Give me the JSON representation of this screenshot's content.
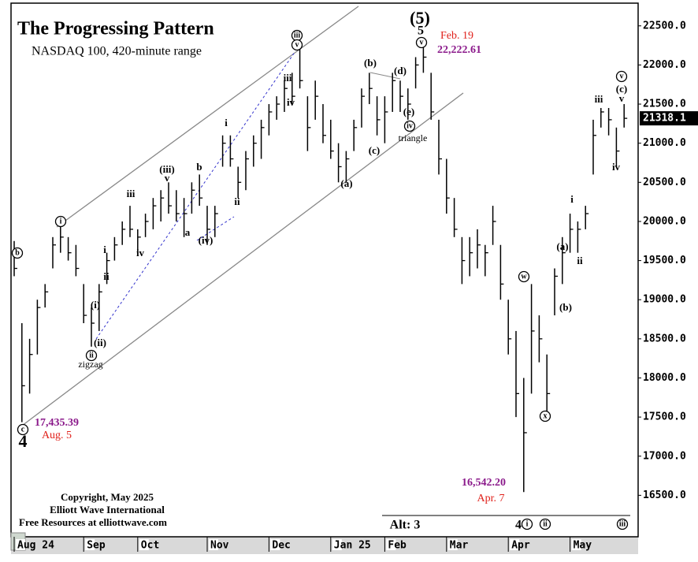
{
  "chart_data": {
    "type": "ohlc",
    "title": "The Progressing Pattern",
    "subtitle": "NASDAQ 100, 420-minute range",
    "categories": [
      "Aug 24",
      null,
      null,
      null,
      null,
      null,
      null,
      null,
      null,
      "Sep",
      null,
      null,
      null,
      null,
      null,
      null,
      "Oct",
      null,
      null,
      null,
      null,
      null,
      null,
      null,
      null,
      "Nov",
      null,
      null,
      null,
      null,
      null,
      null,
      null,
      "Dec",
      null,
      null,
      null,
      null,
      null,
      null,
      null,
      "Jan 25",
      null,
      null,
      null,
      null,
      null,
      null,
      "Feb",
      null,
      null,
      null,
      null,
      null,
      null,
      null,
      "Mar",
      null,
      null,
      null,
      null,
      null,
      null,
      null,
      "Apr",
      null,
      null,
      null,
      null,
      null,
      null,
      null,
      "May",
      null,
      null,
      null,
      null,
      null,
      null,
      null
    ],
    "high": [
      19750,
      18700,
      18500,
      19000,
      19200,
      19800,
      19950,
      19800,
      19700,
      19200,
      18900,
      19200,
      19600,
      19800,
      20000,
      20200,
      19900,
      20100,
      20300,
      20400,
      20500,
      20400,
      20300,
      20500,
      20600,
      20200,
      20200,
      21100,
      21100,
      20700,
      20900,
      21100,
      21300,
      21500,
      21600,
      21800,
      21900,
      22200,
      21600,
      21800,
      21500,
      21300,
      21000,
      20900,
      21300,
      21700,
      21900,
      21600,
      21600,
      21900,
      21800,
      21700,
      22100,
      22223,
      21900,
      21300,
      20800,
      20300,
      19800,
      19800,
      19900,
      19700,
      20200,
      19700,
      19000,
      18600,
      18000,
      19200,
      18800,
      18300,
      19400,
      19800,
      20100,
      20000,
      20200,
      21300,
      21450,
      21450,
      21200,
      21500
    ],
    "low": [
      19300,
      17435,
      17800,
      18300,
      18900,
      19400,
      19600,
      19500,
      19300,
      18700,
      18400,
      18600,
      19200,
      19500,
      19700,
      19800,
      19600,
      19800,
      19900,
      20000,
      20100,
      20000,
      19800,
      20100,
      20200,
      19700,
      19800,
      20700,
      20700,
      20300,
      20400,
      20700,
      20800,
      21100,
      21300,
      21400,
      21500,
      21700,
      20900,
      21300,
      21000,
      20800,
      20500,
      20500,
      20900,
      21200,
      21500,
      21100,
      21000,
      21400,
      21400,
      21300,
      21700,
      21900,
      21300,
      20600,
      20100,
      19800,
      19200,
      19300,
      19400,
      19300,
      19700,
      19000,
      18300,
      17500,
      16542,
      17800,
      18200,
      17500,
      18800,
      19200,
      19600,
      19600,
      19900,
      20600,
      21200,
      21100,
      20700,
      21200
    ],
    "close": [
      19400,
      17900,
      18300,
      18900,
      19100,
      19700,
      19800,
      19600,
      19400,
      18800,
      18700,
      19100,
      19500,
      19700,
      19900,
      19900,
      19800,
      20000,
      20200,
      20300,
      20200,
      20100,
      20100,
      20400,
      20300,
      19900,
      20100,
      21000,
      20800,
      20500,
      20800,
      21000,
      21200,
      21400,
      21500,
      21700,
      21600,
      21800,
      21200,
      21600,
      21100,
      20900,
      20700,
      20800,
      21200,
      21600,
      21700,
      21300,
      21400,
      21800,
      21600,
      21500,
      22000,
      22100,
      21400,
      20800,
      20300,
      19900,
      19500,
      19600,
      19700,
      19600,
      20000,
      19200,
      18500,
      17800,
      17300,
      18600,
      18500,
      17800,
      19300,
      19600,
      19900,
      19900,
      20100,
      21100,
      21400,
      21300,
      20900,
      21318.1
    ],
    "color": "#000000",
    "last_label": "21318.1",
    "ylim": [
      15980,
      22780
    ],
    "yticks": [
      {
        "value": 16500,
        "label": "16500.0"
      },
      {
        "value": 17000,
        "label": "17000.0"
      },
      {
        "value": 17500,
        "label": "17500.0"
      },
      {
        "value": 18000,
        "label": "18000.0"
      },
      {
        "value": 18500,
        "label": "18500.0"
      },
      {
        "value": 19000,
        "label": "19000.0"
      },
      {
        "value": 19500,
        "label": "19500.0"
      },
      {
        "value": 20000,
        "label": "20000.0"
      },
      {
        "value": 20500,
        "label": "20500.0"
      },
      {
        "value": 21000,
        "label": "21000.0"
      },
      {
        "value": 21500,
        "label": "21500.0"
      },
      {
        "value": 22000,
        "label": "22000.0"
      },
      {
        "value": 22500,
        "label": "22500.0"
      }
    ],
    "annotations": [
      "b",
      "c",
      "4",
      "17,435.39",
      "Aug. 5",
      "i",
      "i",
      "ii",
      "(i)",
      "(ii)",
      "ii",
      "zigzag",
      "iii",
      "iv",
      "(iii)",
      "v",
      "b",
      "a",
      "(iv)",
      "i",
      "ii",
      "iii",
      "v",
      "iii",
      "iv",
      "(a)",
      "(b)",
      "(c)",
      "(d)",
      "(e)",
      "iv",
      "triangle",
      "(5)",
      "5",
      "v",
      "Feb. 19",
      "22,222.61",
      "w",
      "x",
      "(a)",
      "(b)",
      "i",
      "ii",
      "iii",
      "iv",
      "v",
      "(c)",
      "v",
      "16,542.20",
      "Apr. 7",
      "Alt: 3",
      "4",
      "i",
      "ii",
      "iii"
    ],
    "copyright": [
      "Copyright, May 2025",
      "Elliott Wave International",
      "Free Resources at elliottwave.com"
    ]
  }
}
